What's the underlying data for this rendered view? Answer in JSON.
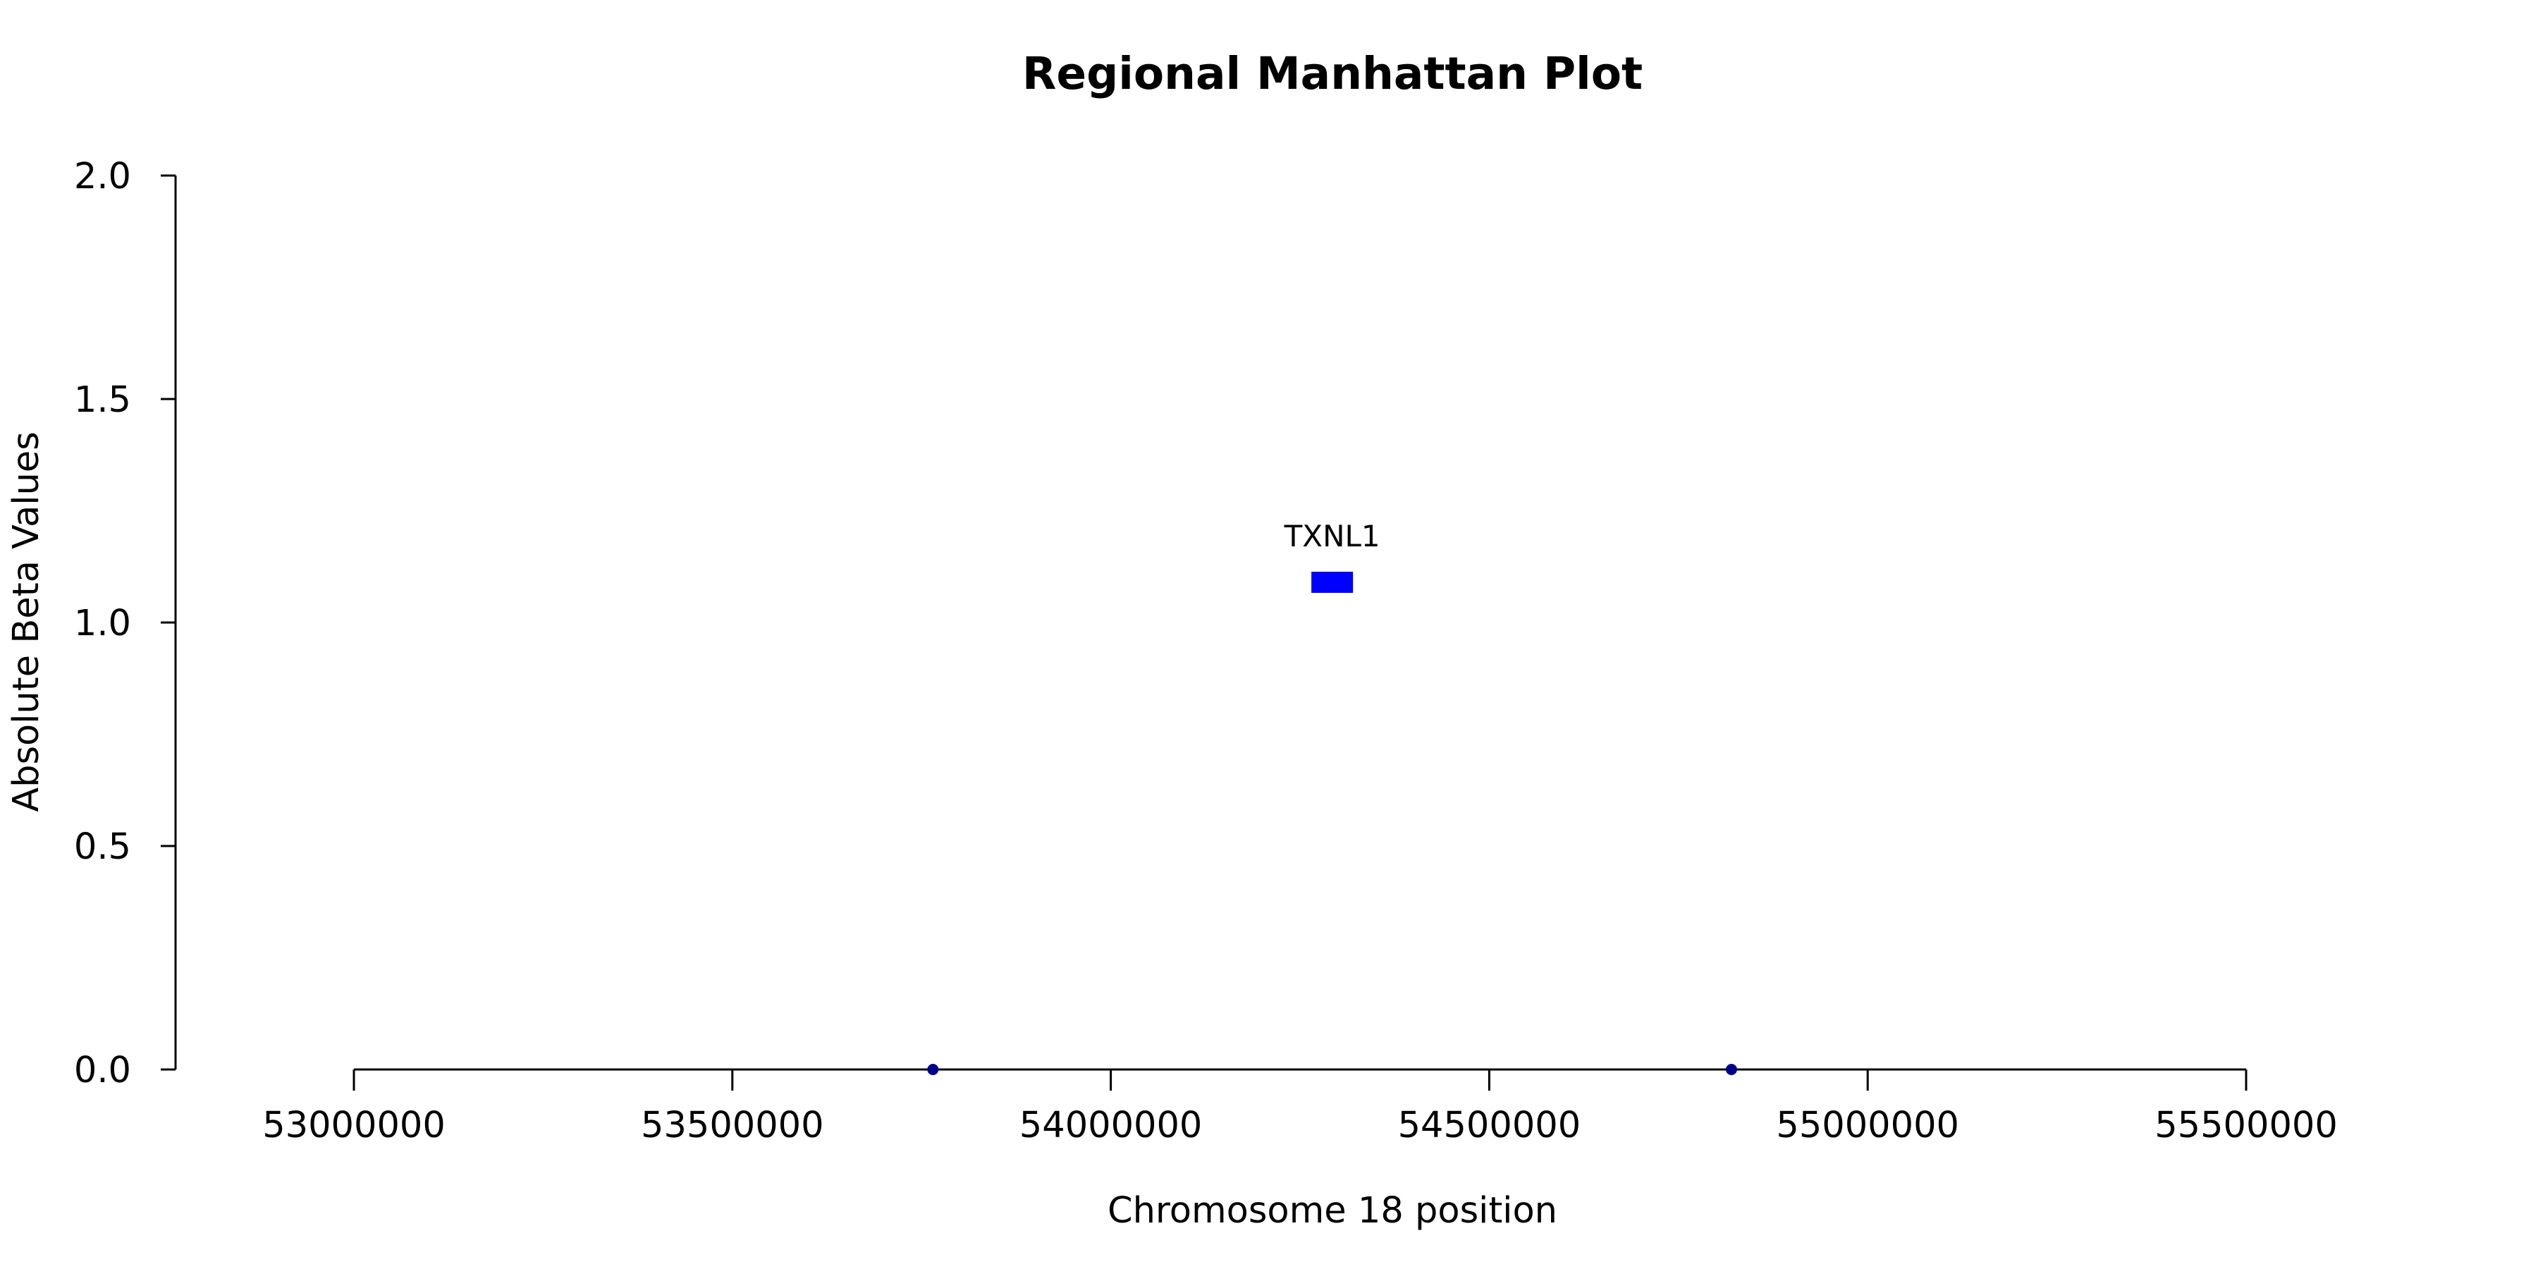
{
  "chart_data": {
    "type": "scatter",
    "title": "Regional Manhattan Plot",
    "xlabel": "Chromosome 18 position",
    "ylabel": "Absolute Beta Values",
    "xlim": [
      53000000,
      55500000
    ],
    "ylim": [
      0,
      2
    ],
    "x_ticks": [
      "53000000",
      "53500000",
      "54000000",
      "54500000",
      "55000000",
      "55500000"
    ],
    "y_ticks": [
      "0.0",
      "0.5",
      "1.0",
      "1.5",
      "2.0"
    ],
    "x_tick_values": [
      53000000,
      53500000,
      54000000,
      54500000,
      55000000,
      55500000
    ],
    "y_tick_values": [
      0,
      0.5,
      1.0,
      1.5,
      2.0
    ],
    "grid": false,
    "points": [
      {
        "x": 53765000,
        "y": 0.0
      },
      {
        "x": 54820000,
        "y": 0.0
      }
    ],
    "point_color": "#00008b",
    "genes": [
      {
        "name": "TXNL1",
        "start": 54265000,
        "end": 54320000,
        "y": 1.09
      }
    ],
    "gene_color": "#0000ff"
  }
}
